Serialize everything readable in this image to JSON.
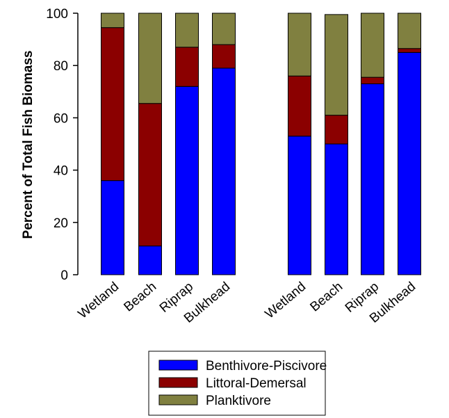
{
  "chart_data": {
    "type": "bar",
    "stacked": true,
    "ylabel": "Percent of Total Fish Biomass",
    "ylim": [
      0,
      100
    ],
    "yticks": [
      "0",
      "20",
      "40",
      "60",
      "80",
      "100"
    ],
    "categories": [
      "Wetland",
      "Beach",
      "Riprap",
      "Bulkhead",
      "Wetland",
      "Beach",
      "Riprap",
      "Bulkhead"
    ],
    "groups": [
      {
        "categories": [
          "Wetland",
          "Beach",
          "Riprap",
          "Bulkhead"
        ]
      },
      {
        "categories": [
          "Wetland",
          "Beach",
          "Riprap",
          "Bulkhead"
        ]
      }
    ],
    "series": [
      {
        "name": "Benthivore-Piscivore",
        "color": "#0000ff",
        "values": [
          36,
          11,
          72,
          79,
          53,
          50,
          73,
          85
        ]
      },
      {
        "name": "Littoral-Demersal",
        "color": "#8b0000",
        "values": [
          58.5,
          54.5,
          15,
          9,
          23,
          11,
          2.5,
          1.5
        ]
      },
      {
        "name": "Planktivore",
        "color": "#808040",
        "values": [
          5.5,
          34.5,
          13,
          12,
          24,
          38.5,
          24.5,
          13.5
        ]
      }
    ],
    "legend": {
      "placement": "bottom-center"
    },
    "grid": false
  }
}
